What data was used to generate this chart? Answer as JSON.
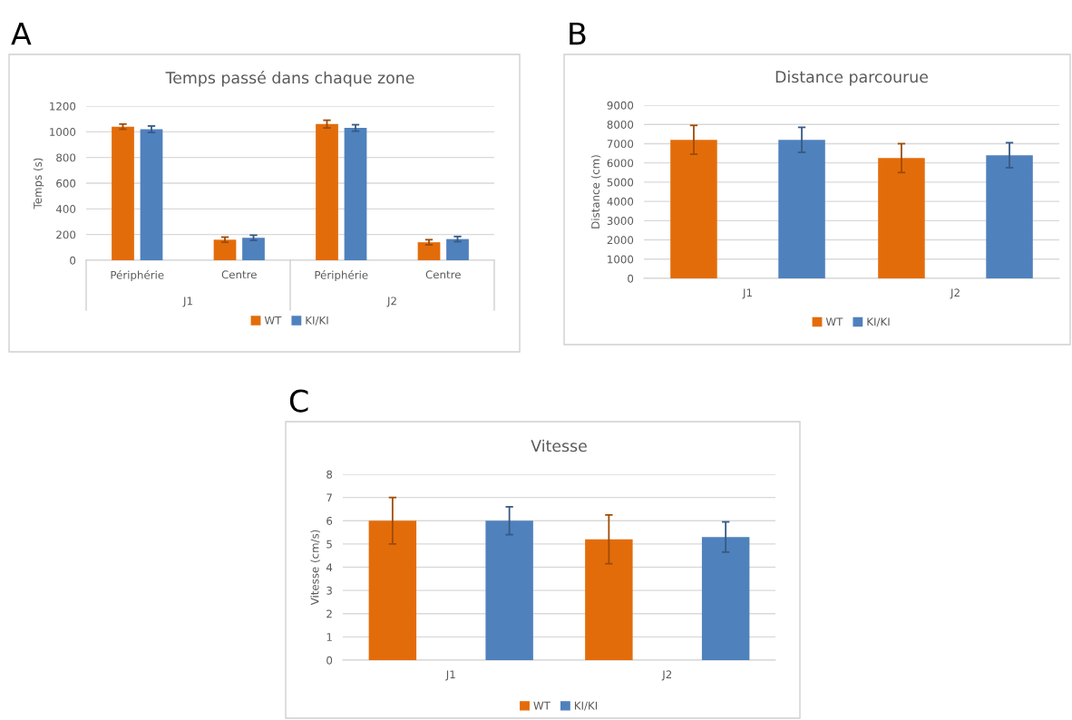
{
  "chart_data": [
    {
      "type": "bar",
      "title": "Temps passé dans chaque zone",
      "ylabel": "Temps (s)",
      "categories": [
        "Périphérie",
        "Centre",
        "Périphérie",
        "Centre"
      ],
      "series": [
        {
          "name": "WT",
          "color": "#e36c0a",
          "values": [
            1040,
            160,
            1060,
            140
          ],
          "errors": [
            20,
            20,
            30,
            20
          ]
        },
        {
          "name": "KI/KI",
          "color": "#4f81bd",
          "values": [
            1020,
            175,
            1030,
            165
          ],
          "errors": [
            25,
            20,
            25,
            20
          ]
        }
      ],
      "ylim": [
        0,
        1200
      ],
      "yticks": [
        0,
        200,
        400,
        600,
        800,
        1000,
        1200
      ],
      "grid": "y",
      "legend": "bottom",
      "annotations": [
        "A",
        "J1",
        "J2"
      ]
    },
    {
      "type": "bar",
      "title": "Distance parcourue",
      "ylabel": "Distance (cm)",
      "categories": [
        "J1",
        "J2"
      ],
      "series": [
        {
          "name": "WT",
          "color": "#e36c0a",
          "values": [
            7200,
            6250
          ],
          "errors": [
            750,
            750
          ]
        },
        {
          "name": "KI/KI",
          "color": "#4f81bd",
          "values": [
            7200,
            6400
          ],
          "errors": [
            650,
            650
          ]
        }
      ],
      "ylim": [
        0,
        9000
      ],
      "yticks": [
        0,
        1000,
        2000,
        3000,
        4000,
        5000,
        6000,
        7000,
        8000,
        9000
      ],
      "grid": "y",
      "legend": "bottom",
      "annotations": [
        "B"
      ]
    },
    {
      "type": "bar",
      "title": "Vitesse",
      "ylabel": "Vitesse (cm/s)",
      "categories": [
        "J1",
        "J2"
      ],
      "series": [
        {
          "name": "WT",
          "color": "#e36c0a",
          "values": [
            6.0,
            5.2
          ],
          "errors": [
            1.0,
            1.05
          ]
        },
        {
          "name": "KI/KI",
          "color": "#4f81bd",
          "values": [
            6.0,
            5.3
          ],
          "errors": [
            0.6,
            0.65
          ]
        }
      ],
      "ylim": [
        0,
        8
      ],
      "yticks": [
        0,
        1,
        2,
        3,
        4,
        5,
        6,
        7,
        8
      ],
      "grid": "y",
      "legend": "bottom",
      "annotations": [
        "C"
      ]
    }
  ]
}
